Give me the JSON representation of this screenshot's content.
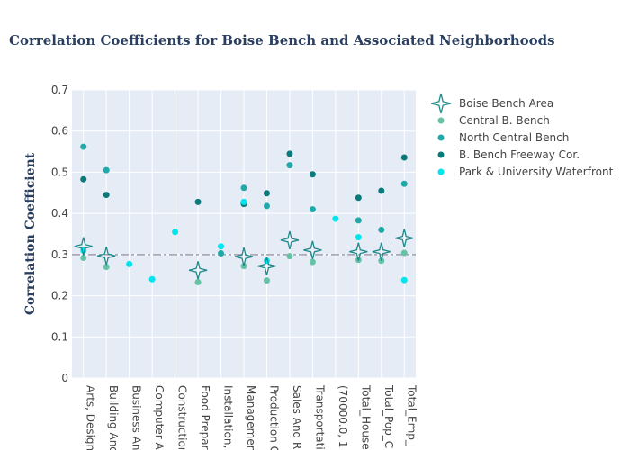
{
  "chart_data": {
    "type": "scatter",
    "title": "Correlation Coefficients for Boise Bench and Associated Neighborhoods",
    "xlabel": "",
    "ylabel": "Correlation Coefficient",
    "ylim": [
      0,
      0.7
    ],
    "y_ticks": [
      0,
      0.1,
      0.2,
      0.3,
      0.4,
      0.5,
      0.6,
      0.7
    ],
    "y_tick_labels": [
      "0",
      "0.1",
      "0.2",
      "0.3",
      "0.4",
      "0.5",
      "0.6",
      "0.7"
    ],
    "grid": true,
    "legend_position": "top-right",
    "plot_bg": "#e5ecf6",
    "reference_line": {
      "y": 0.3,
      "style": "dashdot",
      "color": "#a0a0ac"
    },
    "categories": [
      "Arts, Design",
      "Building And",
      "Business An",
      "Computer A",
      "Construction",
      "Food Prepar",
      "Installation,",
      "Managemen",
      "Production C",
      "Sales And R",
      "Transportati",
      "(70000.0, 1",
      "Total_House",
      "Total_Pop_C",
      "Total_Emp_"
    ],
    "series": [
      {
        "name": "Boise Bench Area",
        "marker": "star4-open",
        "color": "#1f8a8a",
        "values": [
          0.32,
          0.297,
          null,
          null,
          null,
          0.262,
          null,
          0.295,
          0.272,
          0.335,
          0.311,
          null,
          0.307,
          0.307,
          0.34
        ]
      },
      {
        "name": "Central B. Bench",
        "marker": "circle",
        "color": "#66c2a5",
        "values": [
          0.292,
          0.27,
          null,
          null,
          null,
          0.233,
          null,
          0.272,
          0.237,
          0.296,
          0.282,
          null,
          0.287,
          0.285,
          0.304
        ]
      },
      {
        "name": "North Central Bench",
        "marker": "circle",
        "color": "#21a8a8",
        "values": [
          0.562,
          0.505,
          null,
          null,
          null,
          null,
          0.303,
          0.462,
          0.418,
          0.517,
          0.41,
          null,
          0.383,
          0.36,
          0.472
        ]
      },
      {
        "name": "B. Bench Freeway Cor.",
        "marker": "circle",
        "color": "#0b7a7a",
        "values": [
          0.483,
          0.445,
          null,
          null,
          null,
          0.428,
          null,
          0.423,
          0.449,
          0.545,
          0.495,
          null,
          0.438,
          0.455,
          0.536
        ]
      },
      {
        "name": "Park & University Waterfront",
        "marker": "circle",
        "color": "#00e5ee",
        "values": [
          0.31,
          null,
          0.277,
          0.24,
          0.355,
          null,
          0.32,
          0.428,
          0.285,
          null,
          null,
          0.387,
          0.342,
          null,
          0.238
        ]
      }
    ]
  }
}
